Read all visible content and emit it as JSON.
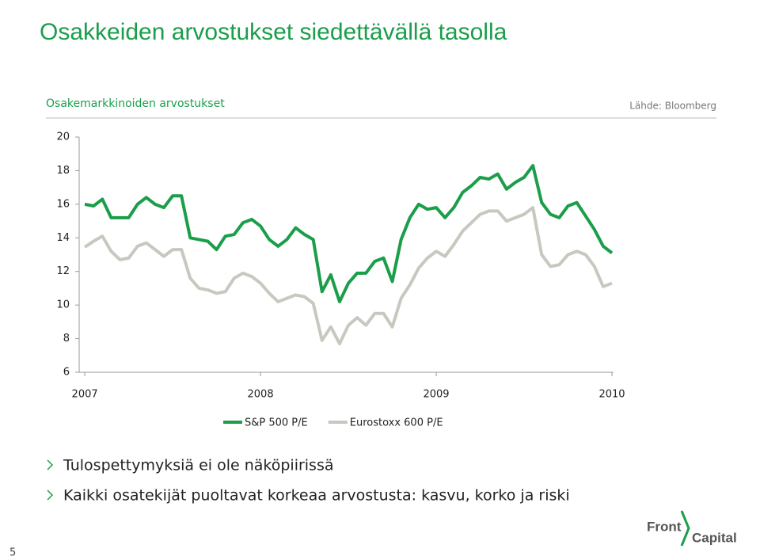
{
  "title": "Osakkeiden arvostukset siedettävällä tasolla",
  "chart_data": {
    "type": "line",
    "title": "Osakemarkkinoiden arvostukset",
    "source": "Lähde: Bloomberg",
    "x": [
      2007.0,
      2007.05,
      2007.1,
      2007.15,
      2007.2,
      2007.25,
      2007.3,
      2007.35,
      2007.4,
      2007.45,
      2007.5,
      2007.55,
      2007.6,
      2007.65,
      2007.7,
      2007.75,
      2007.8,
      2007.85,
      2007.9,
      2007.95,
      2008.0,
      2008.05,
      2008.1,
      2008.15,
      2008.2,
      2008.25,
      2008.3,
      2008.35,
      2008.4,
      2008.45,
      2008.5,
      2008.55,
      2008.6,
      2008.65,
      2008.7,
      2008.75,
      2008.8,
      2008.85,
      2008.9,
      2008.95,
      2009.0,
      2009.05,
      2009.1,
      2009.15,
      2009.2,
      2009.25,
      2009.3,
      2009.35,
      2009.4,
      2009.45,
      2009.5,
      2009.55,
      2009.6,
      2009.65,
      2009.7,
      2009.75,
      2009.8,
      2009.85,
      2009.9,
      2009.95,
      2010.0
    ],
    "series": [
      {
        "name": "S&P 500 P/E",
        "color": "#1a9e4a",
        "values": [
          16.0,
          15.9,
          16.3,
          15.2,
          15.2,
          15.2,
          16.0,
          16.4,
          16.0,
          15.8,
          16.5,
          16.5,
          14.0,
          13.9,
          13.8,
          13.3,
          14.1,
          14.2,
          14.9,
          15.1,
          14.7,
          13.9,
          13.5,
          13.9,
          14.6,
          14.2,
          13.9,
          10.8,
          11.8,
          10.2,
          11.3,
          11.9,
          11.9,
          12.6,
          12.8,
          11.4,
          13.9,
          15.2,
          16.0,
          15.7,
          15.8,
          15.2,
          15.8,
          16.7,
          17.1,
          17.6,
          17.5,
          17.8,
          16.9,
          17.3,
          17.6,
          18.3,
          16.1,
          15.4,
          15.2,
          15.9,
          16.1,
          15.3,
          14.5,
          13.5,
          13.1
        ]
      },
      {
        "name": "Eurostoxx 600 P/E",
        "color": "#c8c8c0",
        "values": [
          13.45,
          13.8,
          14.1,
          13.2,
          12.7,
          12.8,
          13.5,
          13.7,
          13.3,
          12.9,
          13.3,
          13.3,
          11.6,
          11.0,
          10.9,
          10.7,
          10.8,
          11.6,
          11.9,
          11.7,
          11.3,
          10.7,
          10.2,
          10.4,
          10.6,
          10.5,
          10.1,
          7.9,
          8.7,
          7.7,
          8.8,
          9.25,
          8.8,
          9.5,
          9.5,
          8.7,
          10.4,
          11.2,
          12.2,
          12.8,
          13.2,
          12.9,
          13.6,
          14.4,
          14.9,
          15.4,
          15.6,
          15.6,
          15.0,
          15.2,
          15.4,
          15.8,
          13.0,
          12.3,
          12.4,
          13.0,
          13.2,
          13.0,
          12.3,
          11.1,
          11.3
        ]
      }
    ],
    "xlim": [
      2006.968,
      2010.009
    ],
    "xticks": [
      2007,
      2008,
      2009,
      2010
    ],
    "ylim": [
      6,
      20
    ],
    "yticks": [
      6,
      8,
      10,
      12,
      14,
      16,
      18,
      20
    ],
    "grid": false,
    "legend": "bottom"
  },
  "bullets": [
    "Tulospettymyksiä ei ole näköpiirissä",
    "Kaikki osatekijät puoltavat korkeaa arvostusta: kasvu, korko ja riski"
  ],
  "page_number": "5",
  "logo": [
    "Front",
    "Capital"
  ]
}
